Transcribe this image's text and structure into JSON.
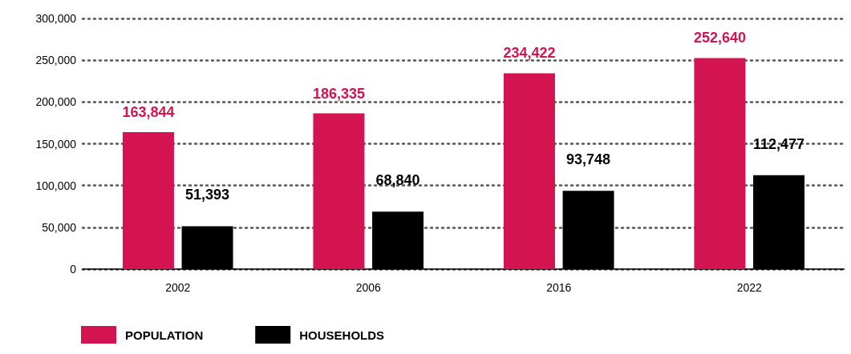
{
  "chart_data": {
    "type": "bar",
    "categories": [
      "2002",
      "2006",
      "2016",
      "2022"
    ],
    "series": [
      {
        "name": "POPULATION",
        "color": "#d41451",
        "values": [
          163844,
          186335,
          234422,
          252640
        ],
        "value_labels": [
          "163,844",
          "186,335",
          "234,422",
          "252,640"
        ]
      },
      {
        "name": "HOUSEHOLDS",
        "color": "#000000",
        "values": [
          51393,
          68840,
          93748,
          112477
        ],
        "value_labels": [
          "51,393",
          "68,840",
          "93,748",
          "112,477"
        ]
      }
    ],
    "ylim": [
      0,
      300000
    ],
    "yticks": [
      {
        "value": 0,
        "label": "0"
      },
      {
        "value": 50000,
        "label": "50,000"
      },
      {
        "value": 100000,
        "label": "100,000"
      },
      {
        "value": 150000,
        "label": "150,000"
      },
      {
        "value": 200000,
        "label": "200,000"
      },
      {
        "value": 250000,
        "label": "250,000"
      },
      {
        "value": 300000,
        "label": "300,000"
      }
    ],
    "grid": "y",
    "legend": "bottom left"
  }
}
